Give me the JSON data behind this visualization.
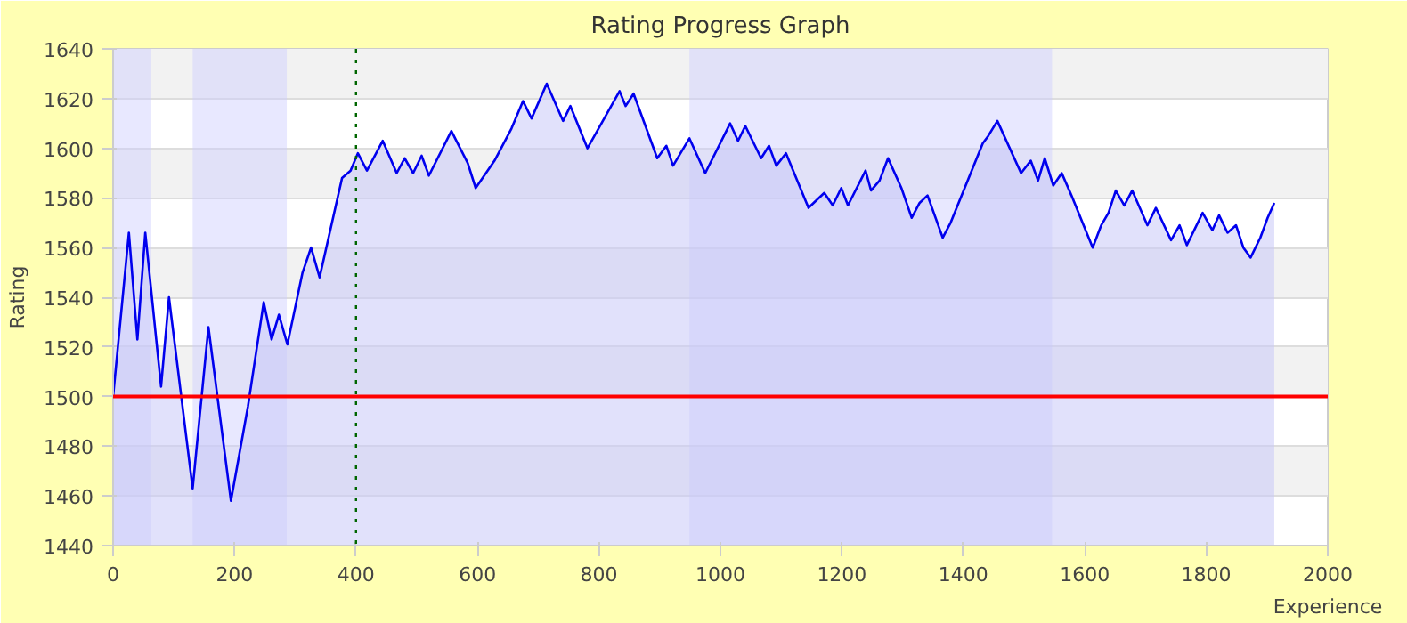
{
  "chart_data": {
    "type": "area",
    "title": "Rating Progress Graph",
    "xlabel": "Experience",
    "ylabel": "Rating",
    "x": [
      0,
      26,
      40,
      53,
      79,
      92,
      131,
      157,
      194,
      222,
      248,
      261,
      273,
      287,
      312,
      326,
      340,
      377,
      391,
      403,
      418,
      444,
      467,
      480,
      494,
      508,
      520,
      557,
      584,
      597,
      628,
      656,
      675,
      689,
      714,
      741,
      753,
      781,
      834,
      844,
      857,
      896,
      911,
      922,
      949,
      975,
      1016,
      1029,
      1041,
      1067,
      1080,
      1092,
      1108,
      1145,
      1171,
      1185,
      1199,
      1210,
      1239,
      1248,
      1262,
      1276,
      1298,
      1315,
      1328,
      1341,
      1366,
      1379,
      1432,
      1441,
      1456,
      1495,
      1511,
      1523,
      1534,
      1548,
      1562,
      1578,
      1613,
      1627,
      1639,
      1651,
      1665,
      1678,
      1703,
      1717,
      1742,
      1756,
      1768,
      1794,
      1810,
      1821,
      1835,
      1849,
      1861,
      1873,
      1889,
      1901,
      1912
    ],
    "series": [
      {
        "color": "#0000ee",
        "values": [
          1500,
          1566,
          1523,
          1566,
          1504,
          1540,
          1463,
          1528,
          1458,
          1496,
          1538,
          1523,
          1533,
          1521,
          1550,
          1560,
          1548,
          1588,
          1591,
          1598,
          1591,
          1603,
          1590,
          1596,
          1590,
          1597,
          1589,
          1607,
          1594,
          1584,
          1595,
          1608,
          1619,
          1612,
          1626,
          1611,
          1617,
          1600,
          1623,
          1617,
          1622,
          1596,
          1601,
          1593,
          1604,
          1590,
          1610,
          1603,
          1609,
          1596,
          1601,
          1593,
          1598,
          1576,
          1582,
          1577,
          1584,
          1577,
          1591,
          1583,
          1587,
          1596,
          1584,
          1572,
          1578,
          1581,
          1564,
          1570,
          1602,
          1605,
          1611,
          1590,
          1595,
          1587,
          1596,
          1585,
          1590,
          1581,
          1560,
          1569,
          1574,
          1583,
          1577,
          1583,
          1569,
          1576,
          1563,
          1569,
          1561,
          1574,
          1567,
          1573,
          1566,
          1569,
          1560,
          1556,
          1564,
          1572,
          1578
        ]
      }
    ],
    "xlim": [
      0,
      2000
    ],
    "ylim": [
      1440,
      1640
    ],
    "xticks": [
      0,
      200,
      400,
      600,
      800,
      1000,
      1200,
      1400,
      1600,
      1800,
      2000
    ],
    "yticks": [
      1440,
      1460,
      1480,
      1500,
      1520,
      1540,
      1560,
      1580,
      1600,
      1620,
      1640
    ],
    "grid": "y",
    "marker": "none",
    "line_style": "solid",
    "ref_lines": [
      {
        "axis": "y",
        "value": 1500,
        "color": "#ff0000",
        "line_style": "solid"
      },
      {
        "axis": "x",
        "value": 400,
        "color": "#006600",
        "line_style": "dotted"
      }
    ],
    "bands": [
      {
        "axis": "x",
        "from": 0,
        "to": 63,
        "color": "#ccccff"
      },
      {
        "axis": "x",
        "from": 131,
        "to": 286,
        "color": "#ccccff"
      },
      {
        "axis": "x",
        "from": 949,
        "to": 1546,
        "color": "#ccccff"
      }
    ]
  }
}
